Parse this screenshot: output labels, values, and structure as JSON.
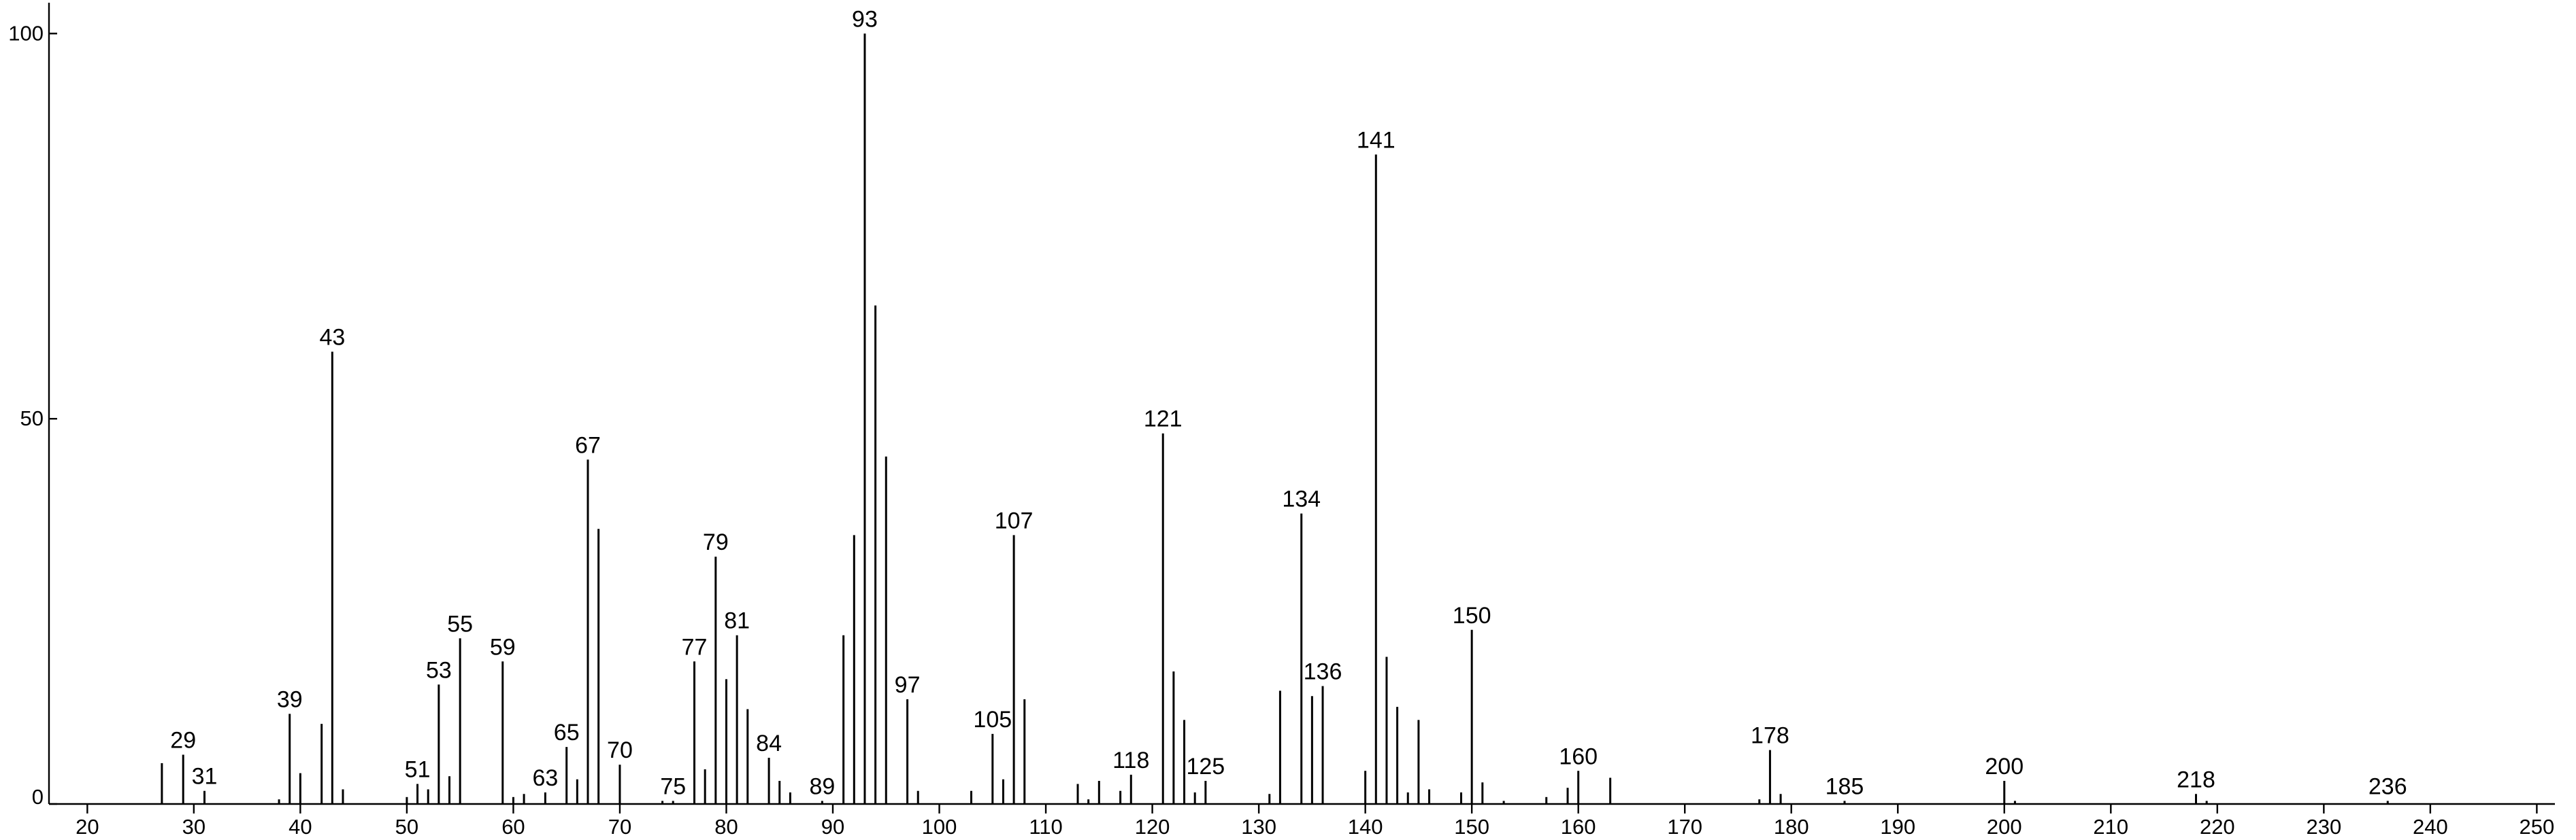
{
  "chart_data": {
    "type": "stem",
    "x": [
      27,
      29,
      31,
      38,
      39,
      40,
      42,
      43,
      44,
      50,
      51,
      52,
      53,
      54,
      55,
      59,
      60,
      61,
      63,
      65,
      66,
      67,
      68,
      70,
      74,
      75,
      77,
      78,
      79,
      80,
      81,
      82,
      84,
      85,
      86,
      89,
      91,
      92,
      93,
      94,
      95,
      97,
      98,
      103,
      105,
      106,
      107,
      108,
      113,
      114,
      115,
      117,
      118,
      121,
      122,
      123,
      124,
      125,
      131,
      132,
      134,
      135,
      136,
      140,
      141,
      142,
      143,
      144,
      145,
      146,
      149,
      150,
      151,
      153,
      157,
      159,
      160,
      163,
      177,
      178,
      179,
      185,
      200,
      201,
      218,
      219,
      236
    ],
    "values": [
      5.3,
      6.4,
      1.7,
      0.6,
      11.7,
      4,
      10.4,
      58.7,
      1.9,
      0.9,
      2.6,
      1.9,
      15.5,
      3.6,
      21.5,
      18.5,
      0.9,
      1.3,
      1.5,
      7.4,
      3.2,
      44.7,
      35.7,
      5.1,
      0.4,
      0.4,
      18.5,
      4.5,
      32.1,
      16.2,
      21.9,
      12.3,
      6,
      3,
      1.5,
      0.4,
      21.9,
      34.9,
      100,
      64.7,
      45.1,
      13.6,
      1.7,
      1.7,
      9.1,
      3.2,
      34.9,
      13.6,
      2.6,
      0.6,
      3,
      1.7,
      3.8,
      48.1,
      17.2,
      10.9,
      1.5,
      3,
      1.3,
      14.7,
      37.7,
      14,
      15.3,
      4.3,
      84.3,
      19.1,
      12.6,
      1.5,
      10.9,
      1.9,
      1.5,
      22.6,
      2.8,
      0.4,
      0.9,
      2.1,
      4.3,
      3.4,
      0.6,
      7,
      1.3,
      0.4,
      3,
      0.4,
      1.3,
      0.4,
      0.4
    ],
    "annotations": [
      29,
      31,
      39,
      43,
      51,
      53,
      55,
      59,
      63,
      65,
      67,
      70,
      75,
      77,
      79,
      81,
      84,
      89,
      93,
      97,
      105,
      107,
      118,
      121,
      125,
      134,
      136,
      141,
      150,
      160,
      178,
      185,
      200,
      218,
      236
    ],
    "color": "#000000",
    "xlim": [
      16.4,
      251.7
    ],
    "ylim": [
      0,
      104
    ],
    "xticks": [
      20,
      30,
      40,
      50,
      60,
      70,
      80,
      90,
      100,
      110,
      120,
      130,
      140,
      150,
      160,
      170,
      180,
      190,
      200,
      210,
      220,
      230,
      240,
      250
    ],
    "yticks": [
      0,
      50,
      100
    ]
  }
}
